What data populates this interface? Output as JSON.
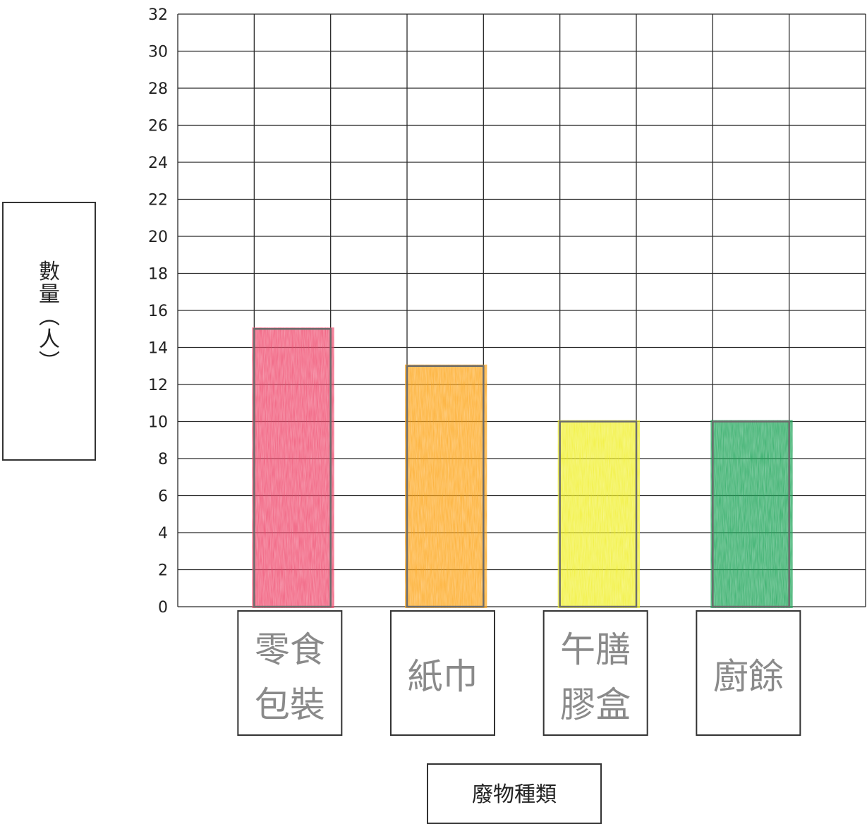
{
  "chart_data": {
    "type": "bar",
    "title": "",
    "xlabel": "廢物種類",
    "ylabel": "數量(人)",
    "ylim": [
      0,
      32
    ],
    "yticks": [
      "0",
      "2",
      "4",
      "6",
      "8",
      "10",
      "12",
      "14",
      "16",
      "18",
      "20",
      "22",
      "24",
      "26",
      "28",
      "30",
      "32"
    ],
    "categories": [
      {
        "line1": "零食",
        "line2": "包裝"
      },
      {
        "line1": "紙巾",
        "line2": ""
      },
      {
        "line1": "午膳",
        "line2": "膠盒"
      },
      {
        "line1": "廚餘",
        "line2": ""
      }
    ],
    "values": [
      15,
      13,
      10,
      10
    ],
    "colors": [
      "#ef4b6e",
      "#fda61c",
      "#f0ef2a",
      "#1fa55a"
    ],
    "grid": true
  }
}
